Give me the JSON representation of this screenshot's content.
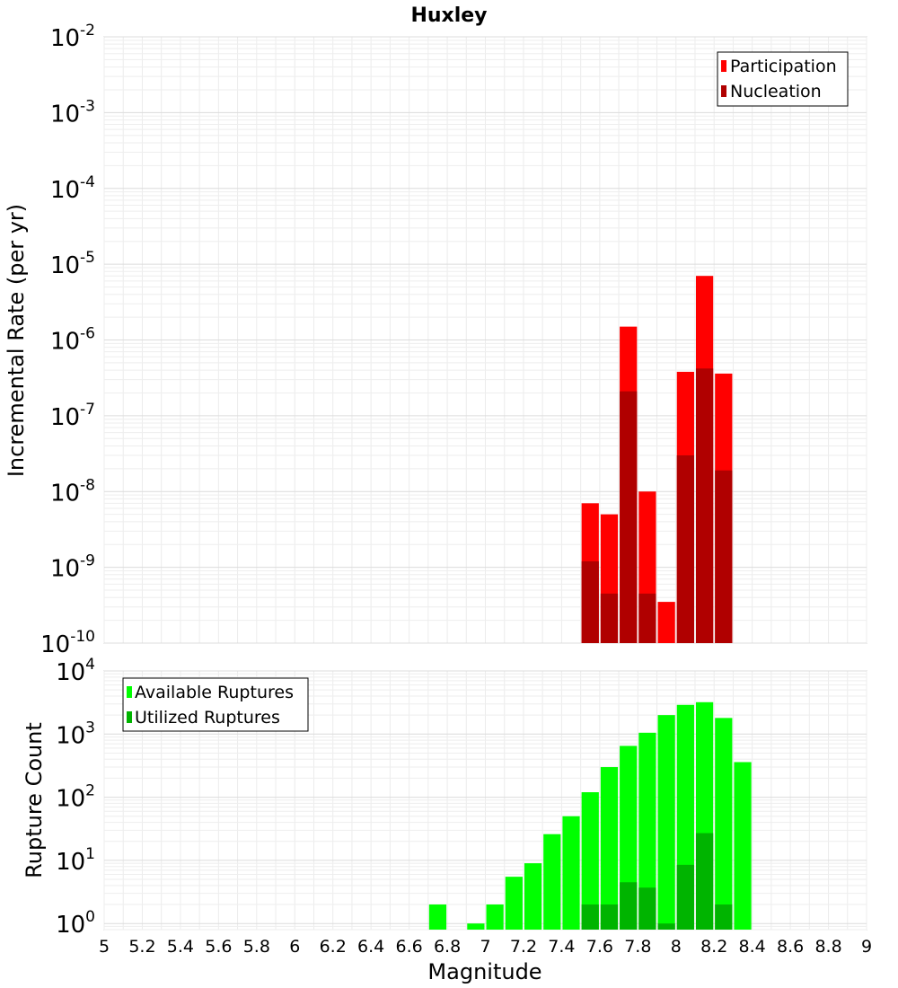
{
  "chart_data": [
    {
      "type": "bar",
      "title": "Huxley",
      "ylabel": "Incremental Rate (per yr)",
      "xlabel": "",
      "yscale": "log",
      "ylim": [
        1e-10,
        0.01
      ],
      "xlim": [
        5,
        9
      ],
      "bin_width": 0.1,
      "grid": true,
      "legend_placement": "top-right",
      "y_ticks": [
        {
          "base": "10",
          "exp": "-2",
          "value": 0.01
        },
        {
          "base": "10",
          "exp": "-3",
          "value": 0.001
        },
        {
          "base": "10",
          "exp": "-4",
          "value": 0.0001
        },
        {
          "base": "10",
          "exp": "-5",
          "value": 1e-05
        },
        {
          "base": "10",
          "exp": "-6",
          "value": 1e-06
        },
        {
          "base": "10",
          "exp": "-7",
          "value": 1e-07
        },
        {
          "base": "10",
          "exp": "-8",
          "value": 1e-08
        },
        {
          "base": "10",
          "exp": "-9",
          "value": 1e-09
        },
        {
          "base": "10",
          "exp": "-10",
          "value": 1e-10
        }
      ],
      "series": [
        {
          "name": "Participation",
          "color": "#ff0000",
          "x": [
            7.55,
            7.65,
            7.75,
            7.85,
            7.95,
            8.05,
            8.15,
            8.25
          ],
          "values": [
            7e-09,
            5e-09,
            1.5e-06,
            1e-08,
            3.5e-10,
            3.8e-07,
            7e-06,
            3.6e-07
          ]
        },
        {
          "name": "Nucleation",
          "color": "#b00000",
          "x": [
            7.55,
            7.65,
            7.75,
            7.85,
            8.05,
            8.15,
            8.25
          ],
          "values": [
            1.2e-09,
            4.5e-10,
            2.1e-07,
            4.5e-10,
            3e-08,
            4.2e-07,
            1.9e-08
          ]
        }
      ]
    },
    {
      "type": "bar",
      "title": "",
      "ylabel": "Rupture Count",
      "xlabel": "Magnitude",
      "yscale": "log",
      "ylim": [
        0.8,
        10000
      ],
      "xlim": [
        5,
        9
      ],
      "bin_width": 0.1,
      "grid": true,
      "legend_placement": "top-left",
      "x_ticks": [
        "5",
        "5.2",
        "5.4",
        "5.6",
        "5.8",
        "6",
        "6.2",
        "6.4",
        "6.6",
        "6.8",
        "7",
        "7.2",
        "7.4",
        "7.6",
        "7.8",
        "8",
        "8.2",
        "8.4",
        "8.6",
        "8.8",
        "9"
      ],
      "y_ticks": [
        {
          "base": "10",
          "exp": "4",
          "value": 10000
        },
        {
          "base": "10",
          "exp": "3",
          "value": 1000
        },
        {
          "base": "10",
          "exp": "2",
          "value": 100
        },
        {
          "base": "10",
          "exp": "1",
          "value": 10
        },
        {
          "base": "10",
          "exp": "0",
          "value": 1
        }
      ],
      "series": [
        {
          "name": "Available Ruptures",
          "color": "#00ff00",
          "x": [
            6.75,
            6.95,
            7.05,
            7.15,
            7.25,
            7.35,
            7.45,
            7.55,
            7.65,
            7.75,
            7.85,
            7.95,
            8.05,
            8.15,
            8.25,
            8.35
          ],
          "values": [
            2,
            1,
            2,
            5.5,
            9,
            26,
            50,
            120,
            300,
            650,
            1050,
            2000,
            2900,
            3200,
            1800,
            360
          ]
        },
        {
          "name": "Utilized Ruptures",
          "color": "#00b400",
          "x": [
            7.55,
            7.65,
            7.75,
            7.85,
            7.95,
            8.05,
            8.15,
            8.25
          ],
          "values": [
            2,
            2,
            4.5,
            3.7,
            1,
            8.5,
            27,
            2
          ]
        }
      ]
    }
  ]
}
